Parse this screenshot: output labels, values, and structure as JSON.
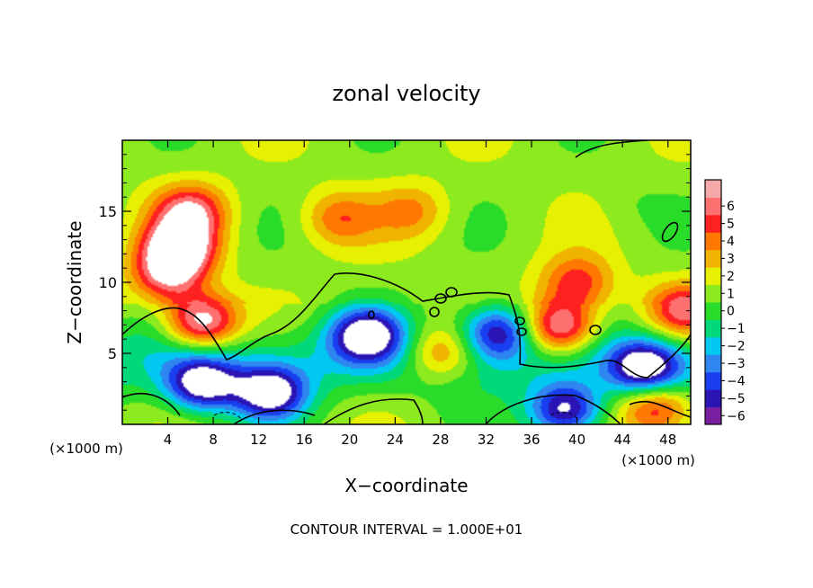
{
  "chart_data": {
    "type": "heatmap",
    "title": "zonal velocity",
    "xlabel": "X−coordinate",
    "ylabel": "Z−coordinate",
    "x_unit_left": "(×1000 m)",
    "x_unit_right": "(×1000 m)",
    "footer": "CONTOUR INTERVAL = 1.000E+01",
    "xlim": [
      0,
      50
    ],
    "ylim": [
      0,
      20
    ],
    "x_ticks": [
      4,
      8,
      12,
      16,
      20,
      24,
      28,
      32,
      36,
      40,
      44,
      48
    ],
    "x_tick_labels": [
      "4",
      "8",
      "12",
      "16",
      "20",
      "24",
      "28",
      "32",
      "36",
      "40",
      "44",
      "48"
    ],
    "y_ticks": [
      5,
      10,
      15
    ],
    "y_tick_labels": [
      "5",
      "10",
      "15"
    ],
    "colorbar": {
      "levels": [
        -6,
        -5,
        -4,
        -3,
        -2,
        -1,
        0,
        1,
        2,
        3,
        4,
        5,
        6
      ],
      "labels": [
        "−6",
        "−5",
        "−4",
        "−3",
        "−2",
        "−1",
        "0",
        "1",
        "2",
        "3",
        "4",
        "5",
        "6"
      ],
      "colors": [
        "#7a1fa0",
        "#2a14b4",
        "#1a3ff0",
        "#2f86f0",
        "#00c8f0",
        "#00d87a",
        "#2adc2a",
        "#8cea1e",
        "#e6f000",
        "#f0b400",
        "#ff7800",
        "#ff2020",
        "#ff7070",
        "#f4a8a8"
      ],
      "saturation_color": "#ffffff"
    },
    "field_features": [
      {
        "x": 5,
        "z": 12.5,
        "value": 7
      },
      {
        "x": 6,
        "z": 15,
        "value": 5
      },
      {
        "x": 4,
        "z": 10.5,
        "value": 5
      },
      {
        "x": 7,
        "z": 2.8,
        "value": -7
      },
      {
        "x": 7,
        "z": 7.2,
        "value": 7
      },
      {
        "x": 13,
        "z": 2.2,
        "value": -7
      },
      {
        "x": 19,
        "z": 14.5,
        "value": 3
      },
      {
        "x": 21.5,
        "z": 6.3,
        "value": -7
      },
      {
        "x": 25.5,
        "z": 15,
        "value": 2.5
      },
      {
        "x": 28,
        "z": 5,
        "value": 4
      },
      {
        "x": 33,
        "z": 6.5,
        "value": -6
      },
      {
        "x": 38.5,
        "z": 6.8,
        "value": 7
      },
      {
        "x": 40,
        "z": 10,
        "value": 4
      },
      {
        "x": 46,
        "z": 4,
        "value": -7
      },
      {
        "x": 45,
        "z": 15.5,
        "value": -0.5
      },
      {
        "x": 39,
        "z": 1,
        "value": -7
      },
      {
        "x": 47,
        "z": 1.2,
        "value": 5
      },
      {
        "x": 49.5,
        "z": 8,
        "value": 5
      }
    ]
  }
}
